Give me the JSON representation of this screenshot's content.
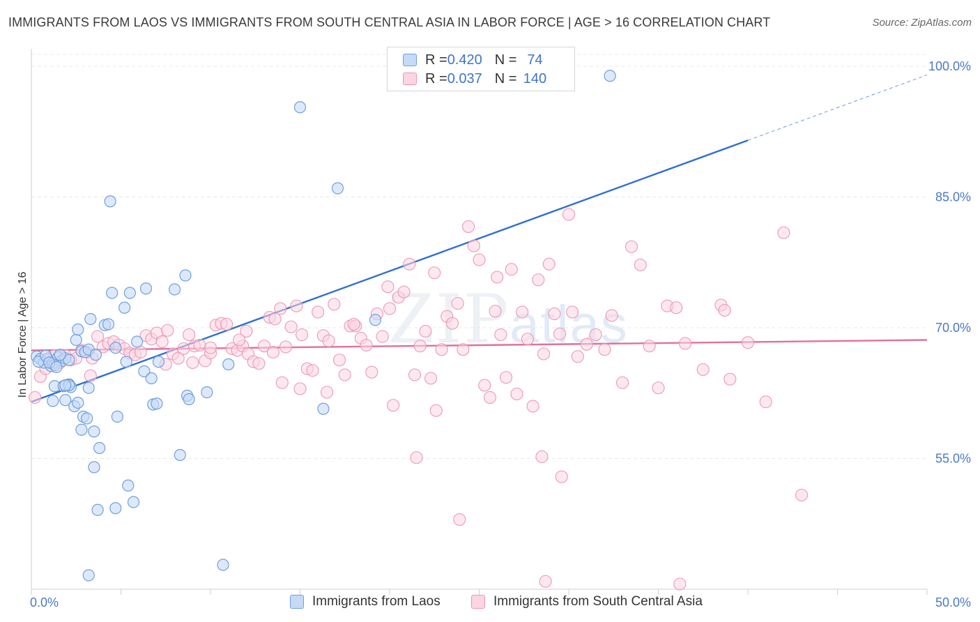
{
  "title": "IMMIGRANTS FROM LAOS VS IMMIGRANTS FROM SOUTH CENTRAL ASIA IN LABOR FORCE | AGE > 16 CORRELATION CHART",
  "source": "Source: ZipAtlas.com",
  "watermark": {
    "zip": "ZIP",
    "atlas": "atlas"
  },
  "legend": {
    "rows": [
      {
        "r_label": "R = ",
        "r_value": "0.420",
        "n_label": "N = ",
        "n_value": "74",
        "color": "#9ec0ee"
      },
      {
        "r_label": "R = ",
        "r_value": "0.037",
        "n_label": "N = ",
        "n_value": "140",
        "color": "#f5b0c6"
      }
    ]
  },
  "colors": {
    "blue_fill": "#c6daf6",
    "blue_stroke": "#6f9fe0",
    "blue_line": "#2f6fd2",
    "pink_fill": "#fbd5e1",
    "pink_stroke": "#ec97b3",
    "pink_line": "#e2709a",
    "axis_label": "#4a78c8",
    "grid": "#e8e8e8"
  },
  "chart_data": {
    "type": "scatter",
    "title": "IMMIGRANTS FROM LAOS VS IMMIGRANTS FROM SOUTH CENTRAL ASIA IN LABOR FORCE | AGE > 16 CORRELATION CHART",
    "xlabel": "",
    "ylabel": "In Labor Force | Age > 16",
    "xlim": [
      0,
      50
    ],
    "ylim": [
      40,
      102
    ],
    "x_tick_labels": [
      "0.0%",
      "50.0%"
    ],
    "y_ticks": [
      55,
      70,
      85,
      100
    ],
    "y_tick_labels": [
      "55.0%",
      "70.0%",
      "85.0%",
      "100.0%"
    ],
    "grid": true,
    "legend_position": "top-center",
    "series": [
      {
        "name": "Immigrants from Laos",
        "color": "#6f9fe0",
        "trend": {
          "x0": 0,
          "y0": 61.5,
          "x1": 40,
          "y1": 91.5,
          "dashed_to_x": 50,
          "dashed_to_y": 99
        },
        "points": [
          [
            0.3,
            66.7
          ],
          [
            0.5,
            66.4
          ],
          [
            0.7,
            66.0
          ],
          [
            0.9,
            66.4
          ],
          [
            1.1,
            65.6
          ],
          [
            0.4,
            66.1
          ],
          [
            0.8,
            66.8
          ],
          [
            1.2,
            65.9
          ],
          [
            1.5,
            66.6
          ],
          [
            1.7,
            66.2
          ],
          [
            1.9,
            66.5
          ],
          [
            2.1,
            66.3
          ],
          [
            1.3,
            65.7
          ],
          [
            1.0,
            66.0
          ],
          [
            1.6,
            66.9
          ],
          [
            1.4,
            65.5
          ],
          [
            2.8,
            67.3
          ],
          [
            3.0,
            67.2
          ],
          [
            3.2,
            67.5
          ],
          [
            2.5,
            68.6
          ],
          [
            2.6,
            69.8
          ],
          [
            3.3,
            71.0
          ],
          [
            4.1,
            70.3
          ],
          [
            4.3,
            70.4
          ],
          [
            4.5,
            74.0
          ],
          [
            5.2,
            72.3
          ],
          [
            5.5,
            74.0
          ],
          [
            6.4,
            74.5
          ],
          [
            8.0,
            74.4
          ],
          [
            8.6,
            76.0
          ],
          [
            4.4,
            84.5
          ],
          [
            15.0,
            95.3
          ],
          [
            17.1,
            86.0
          ],
          [
            32.3,
            98.9
          ],
          [
            3.6,
            66.9
          ],
          [
            4.7,
            67.7
          ],
          [
            5.3,
            66.1
          ],
          [
            5.9,
            68.4
          ],
          [
            7.1,
            66.1
          ],
          [
            6.3,
            65.0
          ],
          [
            6.7,
            64.2
          ],
          [
            1.3,
            63.3
          ],
          [
            1.8,
            63.3
          ],
          [
            2.1,
            63.5
          ],
          [
            2.2,
            63.2
          ],
          [
            2.1,
            63.4
          ],
          [
            1.9,
            63.4
          ],
          [
            3.2,
            63.1
          ],
          [
            1.9,
            61.7
          ],
          [
            1.2,
            61.6
          ],
          [
            2.4,
            61.0
          ],
          [
            2.6,
            61.4
          ],
          [
            2.9,
            59.8
          ],
          [
            3.1,
            59.6
          ],
          [
            2.8,
            58.3
          ],
          [
            3.5,
            58.1
          ],
          [
            3.8,
            56.2
          ],
          [
            3.5,
            54.0
          ],
          [
            4.8,
            59.8
          ],
          [
            6.8,
            61.2
          ],
          [
            7.0,
            61.3
          ],
          [
            8.7,
            62.2
          ],
          [
            8.8,
            61.8
          ],
          [
            9.8,
            62.6
          ],
          [
            11.0,
            65.8
          ],
          [
            16.3,
            60.7
          ],
          [
            19.2,
            70.9
          ],
          [
            8.3,
            55.4
          ],
          [
            5.4,
            51.9
          ],
          [
            5.7,
            50.0
          ],
          [
            4.7,
            49.3
          ],
          [
            3.7,
            49.1
          ],
          [
            3.2,
            41.6
          ],
          [
            10.7,
            42.8
          ]
        ]
      },
      {
        "name": "Immigrants from South Central Asia",
        "color": "#ec97b3",
        "trend": {
          "x0": 0,
          "y0": 67.4,
          "x1": 50,
          "y1": 68.6
        },
        "points": [
          [
            0.2,
            62.0
          ],
          [
            0.5,
            64.4
          ],
          [
            0.8,
            65.3
          ],
          [
            1.0,
            66.5
          ],
          [
            1.3,
            66.8
          ],
          [
            1.6,
            66.0
          ],
          [
            1.9,
            66.8
          ],
          [
            2.2,
            66.3
          ],
          [
            2.5,
            66.5
          ],
          [
            2.8,
            67.4
          ],
          [
            3.1,
            67.2
          ],
          [
            3.4,
            66.5
          ],
          [
            3.7,
            69.0
          ],
          [
            4.0,
            67.8
          ],
          [
            4.3,
            68.2
          ],
          [
            4.6,
            68.4
          ],
          [
            4.9,
            68.0
          ],
          [
            5.2,
            67.6
          ],
          [
            5.5,
            67.1
          ],
          [
            5.8,
            66.9
          ],
          [
            6.1,
            67.2
          ],
          [
            6.4,
            69.1
          ],
          [
            6.7,
            68.7
          ],
          [
            7.0,
            69.4
          ],
          [
            7.3,
            68.4
          ],
          [
            7.6,
            69.7
          ],
          [
            7.9,
            67.0
          ],
          [
            8.2,
            66.5
          ],
          [
            8.5,
            67.6
          ],
          [
            8.8,
            69.2
          ],
          [
            9.1,
            67.9
          ],
          [
            9.4,
            68.0
          ],
          [
            9.7,
            66.2
          ],
          [
            10.0,
            67.1
          ],
          [
            10.3,
            70.3
          ],
          [
            10.6,
            70.5
          ],
          [
            10.9,
            70.4
          ],
          [
            11.2,
            67.6
          ],
          [
            11.5,
            67.4
          ],
          [
            11.8,
            67.9
          ],
          [
            12.1,
            67.0
          ],
          [
            12.4,
            66.1
          ],
          [
            12.7,
            65.9
          ],
          [
            13.0,
            67.9
          ],
          [
            13.3,
            71.2
          ],
          [
            13.6,
            71.0
          ],
          [
            13.9,
            72.2
          ],
          [
            14.2,
            67.8
          ],
          [
            14.5,
            70.1
          ],
          [
            14.8,
            72.5
          ],
          [
            15.1,
            69.2
          ],
          [
            15.4,
            65.3
          ],
          [
            15.7,
            65.1
          ],
          [
            16.0,
            71.8
          ],
          [
            16.3,
            69.1
          ],
          [
            16.6,
            68.5
          ],
          [
            16.9,
            72.7
          ],
          [
            17.2,
            66.3
          ],
          [
            17.5,
            64.6
          ],
          [
            17.8,
            70.2
          ],
          [
            18.1,
            70.2
          ],
          [
            18.4,
            68.8
          ],
          [
            18.7,
            68.0
          ],
          [
            19.0,
            64.9
          ],
          [
            19.3,
            71.6
          ],
          [
            19.6,
            69.0
          ],
          [
            19.9,
            74.7
          ],
          [
            20.2,
            61.1
          ],
          [
            20.5,
            73.5
          ],
          [
            20.8,
            74.1
          ],
          [
            21.1,
            77.3
          ],
          [
            21.4,
            64.6
          ],
          [
            21.7,
            67.9
          ],
          [
            22.0,
            69.6
          ],
          [
            22.3,
            64.2
          ],
          [
            22.6,
            60.5
          ],
          [
            22.9,
            67.5
          ],
          [
            23.2,
            71.3
          ],
          [
            23.5,
            70.5
          ],
          [
            23.8,
            72.8
          ],
          [
            24.1,
            67.5
          ],
          [
            24.4,
            81.6
          ],
          [
            24.7,
            79.4
          ],
          [
            25.0,
            77.8
          ],
          [
            25.3,
            63.4
          ],
          [
            25.6,
            62.0
          ],
          [
            25.9,
            71.9
          ],
          [
            26.2,
            69.2
          ],
          [
            26.5,
            64.3
          ],
          [
            26.8,
            76.7
          ],
          [
            27.1,
            62.4
          ],
          [
            27.4,
            71.8
          ],
          [
            27.7,
            68.7
          ],
          [
            28.0,
            61.0
          ],
          [
            28.3,
            75.5
          ],
          [
            28.6,
            67.0
          ],
          [
            28.9,
            77.3
          ],
          [
            29.2,
            71.6
          ],
          [
            29.5,
            69.3
          ],
          [
            30.0,
            83.0
          ],
          [
            30.5,
            66.7
          ],
          [
            31.0,
            68.1
          ],
          [
            31.5,
            69.2
          ],
          [
            32.0,
            67.5
          ],
          [
            33.0,
            63.7
          ],
          [
            33.5,
            79.3
          ],
          [
            34.0,
            77.2
          ],
          [
            35.0,
            63.1
          ],
          [
            35.5,
            72.5
          ],
          [
            36.0,
            72.3
          ],
          [
            36.5,
            68.2
          ],
          [
            37.5,
            65.2
          ],
          [
            38.5,
            72.6
          ],
          [
            38.7,
            72.0
          ],
          [
            39.0,
            64.1
          ],
          [
            40.0,
            68.3
          ],
          [
            41.0,
            61.5
          ],
          [
            42.0,
            80.9
          ],
          [
            43.0,
            50.8
          ],
          [
            21.5,
            55.1
          ],
          [
            28.5,
            55.2
          ],
          [
            29.6,
            52.9
          ],
          [
            28.7,
            40.9
          ],
          [
            36.2,
            40.6
          ],
          [
            23.9,
            48.0
          ],
          [
            32.4,
            71.4
          ],
          [
            12.0,
            69.6
          ],
          [
            18.0,
            70.4
          ],
          [
            20.0,
            72.2
          ],
          [
            22.5,
            76.3
          ],
          [
            10.0,
            67.7
          ],
          [
            14.0,
            63.7
          ],
          [
            26.0,
            75.8
          ],
          [
            30.2,
            71.8
          ],
          [
            34.5,
            67.9
          ],
          [
            3.3,
            64.5
          ],
          [
            7.5,
            65.8
          ],
          [
            9.0,
            66.0
          ],
          [
            13.5,
            67.2
          ],
          [
            15.0,
            63.0
          ],
          [
            16.5,
            62.6
          ],
          [
            11.6,
            68.6
          ]
        ]
      }
    ]
  }
}
